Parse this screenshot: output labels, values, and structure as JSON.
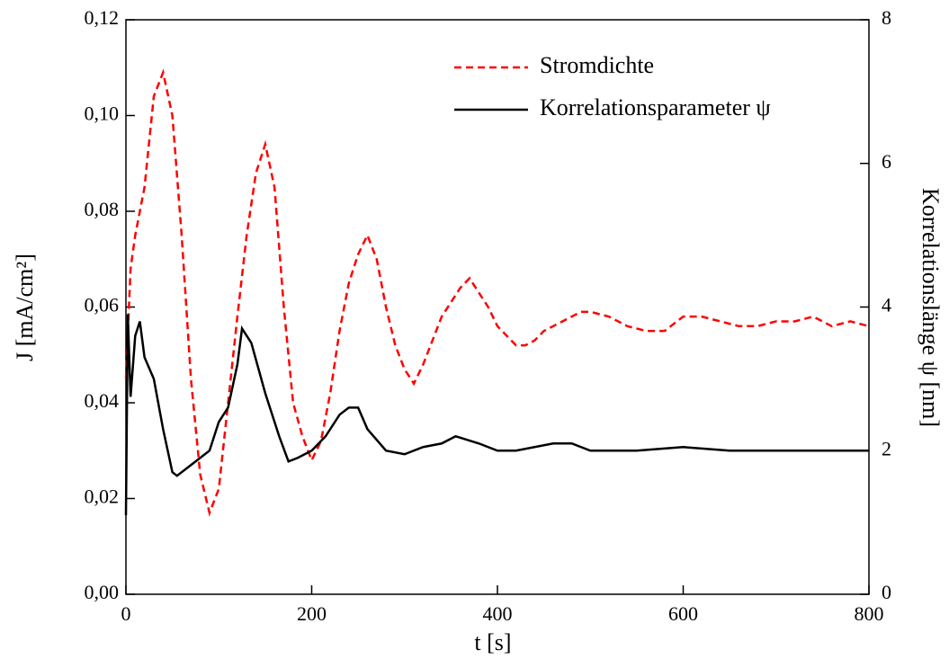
{
  "chart_data": {
    "type": "line",
    "xlabel": "t [s]",
    "ylabel": "J [mA/cm²]",
    "y2label": "Korrelationslänge ψ [nm]",
    "xlim": [
      0,
      800
    ],
    "xticks": [
      0,
      200,
      400,
      600,
      800
    ],
    "ylim": [
      0,
      0.12
    ],
    "yticks": [
      {
        "value": 0,
        "label": "0,00"
      },
      {
        "value": 0.02,
        "label": "0,02"
      },
      {
        "value": 0.04,
        "label": "0,04"
      },
      {
        "value": 0.06,
        "label": "0,06"
      },
      {
        "value": 0.08,
        "label": "0,08"
      },
      {
        "value": 0.1,
        "label": "0,10"
      },
      {
        "value": 0.12,
        "label": "0,12"
      }
    ],
    "y2lim": [
      0,
      8
    ],
    "y2ticks": [
      0,
      2,
      4,
      6,
      8
    ],
    "legend": "upper right",
    "series": [
      {
        "name": "Stromdichte",
        "color": "#ff0000",
        "dash": true,
        "x": [
          0,
          5,
          10,
          20,
          30,
          40,
          50,
          60,
          70,
          80,
          90,
          100,
          110,
          120,
          130,
          140,
          150,
          160,
          170,
          180,
          190,
          200,
          210,
          220,
          230,
          240,
          250,
          260,
          270,
          280,
          290,
          300,
          310,
          320,
          330,
          340,
          350,
          360,
          370,
          380,
          390,
          400,
          410,
          420,
          430,
          440,
          450,
          460,
          470,
          480,
          490,
          500,
          520,
          540,
          560,
          580,
          600,
          620,
          640,
          660,
          680,
          700,
          720,
          740,
          760,
          780,
          800
        ],
        "values": [
          0.045,
          0.068,
          0.075,
          0.085,
          0.104,
          0.109,
          0.1,
          0.075,
          0.045,
          0.025,
          0.017,
          0.022,
          0.04,
          0.058,
          0.075,
          0.088,
          0.094,
          0.085,
          0.06,
          0.04,
          0.033,
          0.028,
          0.032,
          0.042,
          0.055,
          0.065,
          0.071,
          0.075,
          0.07,
          0.06,
          0.052,
          0.047,
          0.044,
          0.048,
          0.053,
          0.058,
          0.061,
          0.064,
          0.066,
          0.063,
          0.06,
          0.056,
          0.054,
          0.052,
          0.052,
          0.053,
          0.055,
          0.056,
          0.057,
          0.058,
          0.059,
          0.059,
          0.058,
          0.056,
          0.055,
          0.055,
          0.058,
          0.058,
          0.057,
          0.056,
          0.056,
          0.057,
          0.057,
          0.058,
          0.056,
          0.057,
          0.056
        ]
      },
      {
        "name": "Korrelationsparameter ψ",
        "color": "#000000",
        "axis": "y2",
        "x": [
          0,
          2,
          5,
          10,
          15,
          20,
          30,
          40,
          50,
          55,
          70,
          90,
          100,
          110,
          120,
          125,
          135,
          150,
          165,
          175,
          185,
          200,
          215,
          230,
          240,
          250,
          260,
          280,
          300,
          320,
          340,
          355,
          380,
          400,
          420,
          460,
          480,
          500,
          550,
          600,
          650,
          700,
          750,
          800
        ],
        "values": [
          1.1,
          3.9,
          2.75,
          3.6,
          3.8,
          3.3,
          3.0,
          2.3,
          1.7,
          1.65,
          1.8,
          2.0,
          2.4,
          2.6,
          3.2,
          3.7,
          3.5,
          2.8,
          2.2,
          1.85,
          1.9,
          2.0,
          2.2,
          2.5,
          2.6,
          2.6,
          2.3,
          2.0,
          1.95,
          2.05,
          2.1,
          2.2,
          2.1,
          2.0,
          2.0,
          2.1,
          2.1,
          2.0,
          2.0,
          2.05,
          2.0,
          2.0,
          2.0,
          2.0
        ]
      }
    ]
  }
}
